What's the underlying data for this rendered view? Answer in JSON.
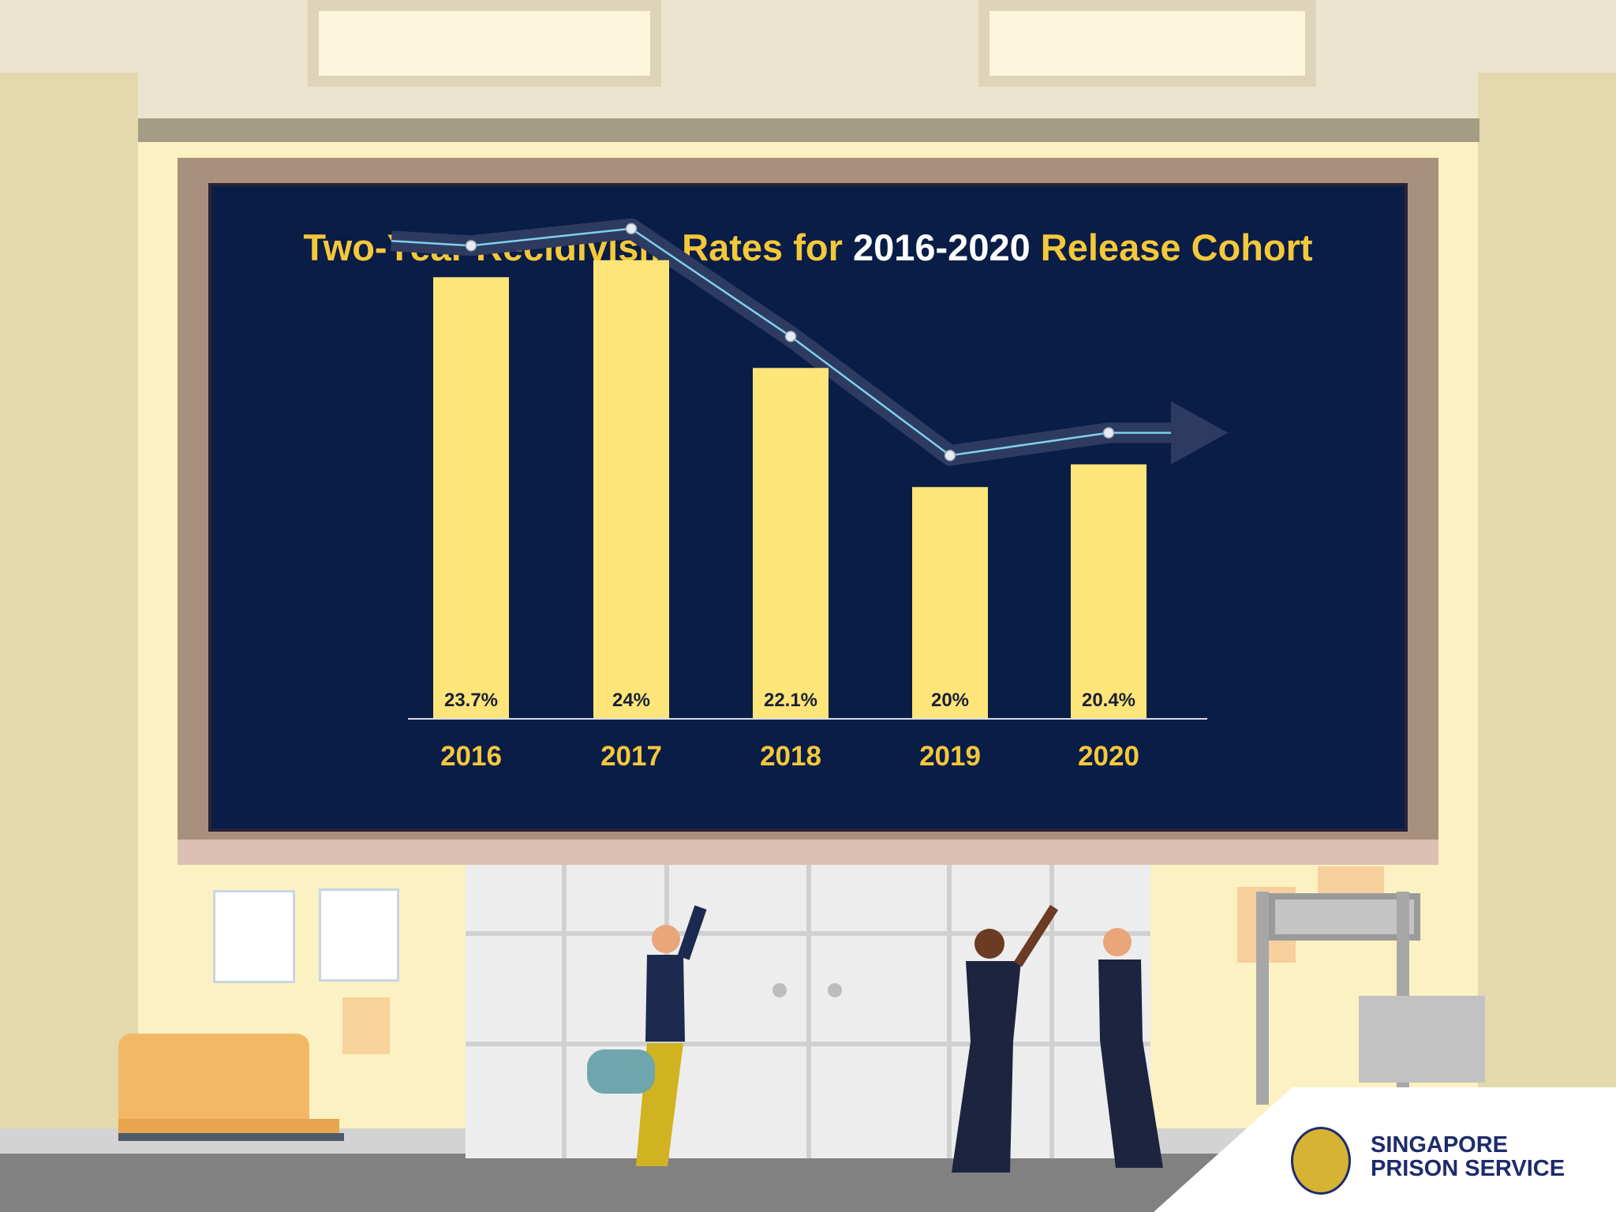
{
  "chart_data": {
    "type": "bar",
    "title_parts": [
      "Two-Year Recidivism Rates for ",
      "2016-2020",
      " Release Cohort"
    ],
    "categories": [
      "2016",
      "2017",
      "2018",
      "2019",
      "2020"
    ],
    "values": [
      23.7,
      24,
      22.1,
      20,
      20.4
    ],
    "value_labels": [
      "23.7%",
      "24%",
      "22.1%",
      "20%",
      "20.4%"
    ],
    "trend_line": true,
    "xlabel": "",
    "ylabel": "",
    "ylim": [
      18,
      24.4
    ],
    "colors": {
      "bar": "#fee57a",
      "background": "#0a1d47",
      "title": "#f5c83a",
      "title_highlight": "#ffffff",
      "line": "#7fd0f0"
    }
  },
  "logo": {
    "line1": "SINGAPORE",
    "line2": "PRISON SERVICE"
  }
}
